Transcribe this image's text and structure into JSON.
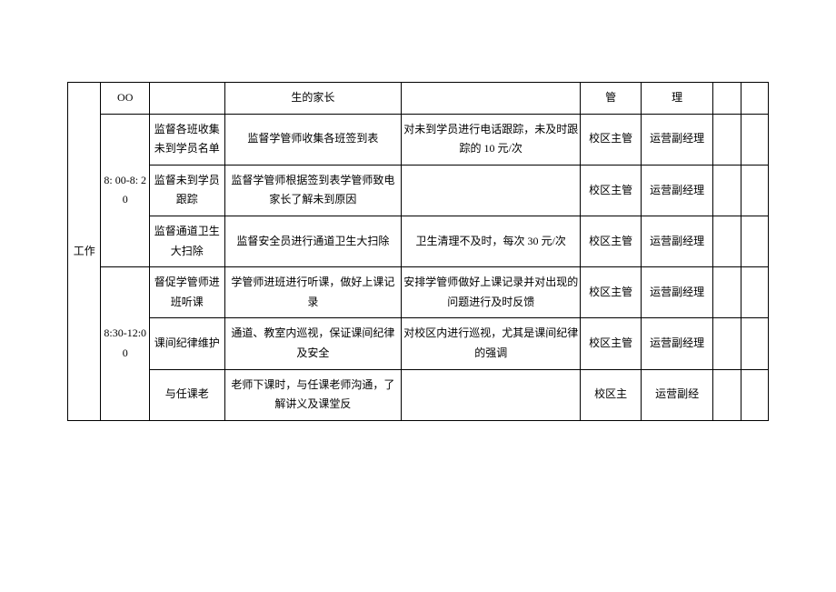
{
  "styles": {
    "page_bg": "#ffffff",
    "border_color": "#000000",
    "font_size": 12,
    "text_color": "#000000"
  },
  "header": {
    "c1": "工作",
    "c2": "OO",
    "c3": "",
    "c4": "生的家长",
    "c5": "",
    "c6": "管",
    "c7": "理",
    "c8": "",
    "c9": ""
  },
  "block1": {
    "time": "8: 00-8: 20",
    "r1": {
      "c3": "监督各班收集未到学员名单",
      "c4": "监督学管师收集各班签到表",
      "c5": "对未到学员进行电话跟踪，未及时跟踪的 10 元/次",
      "c6": "校区主管",
      "c7": "运营副经理",
      "c8": "",
      "c9": ""
    },
    "r2": {
      "c3": "监督未到学员跟踪",
      "c4": "监督学管师根据签到表学管师致电家长了解未到原因",
      "c5": "",
      "c6": "校区主管",
      "c7": "运营副经理",
      "c8": "",
      "c9": ""
    },
    "r3": {
      "c3": "监督通道卫生大扫除",
      "c4": "监督安全员进行通道卫生大扫除",
      "c5": "卫生清理不及时，每次 30 元/次",
      "c6": "校区主管",
      "c7": "运营副经理",
      "c8": "",
      "c9": ""
    }
  },
  "block2": {
    "time": "8:30-12:00",
    "r1": {
      "c3": "督促学管师进班听课",
      "c4": "学管师进班进行听课，做好上课记录",
      "c5": "安排学管师做好上课记录并对出现的问题进行及时反馈",
      "c6": "校区主管",
      "c7": "运营副经理",
      "c8": "",
      "c9": ""
    },
    "r2": {
      "c3": "课间纪律维护",
      "c4": "通道、教室内巡视，保证课间纪律及安全",
      "c5": "对校区内进行巡视，尤其是课间纪律的强调",
      "c6": "校区主管",
      "c7": "运营副经理",
      "c8": "",
      "c9": ""
    },
    "r3": {
      "c3": "与任课老",
      "c4": "老师下课时，与任课老师沟通，了解讲义及课堂反",
      "c5": "",
      "c6": "校区主",
      "c7": "运营副经",
      "c8": "",
      "c9": ""
    }
  }
}
